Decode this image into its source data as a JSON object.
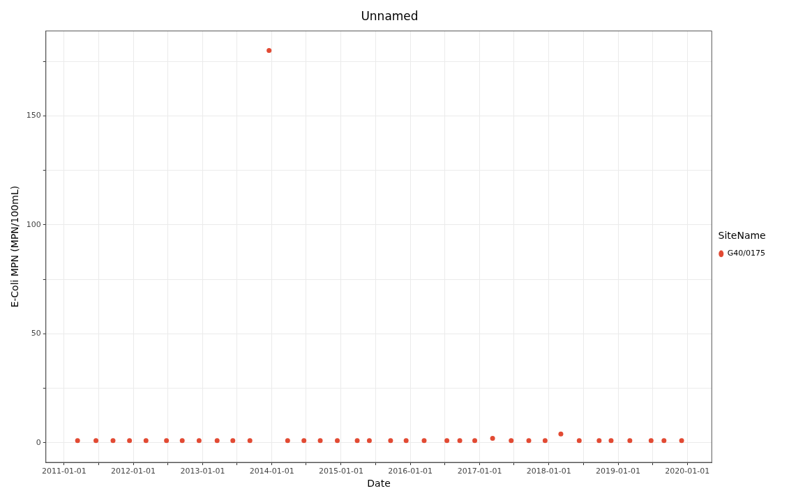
{
  "chart_data": {
    "type": "scatter",
    "title": "Unnamed",
    "xlabel": "Date",
    "ylabel": "E-Coli MPN (MPN/100mL)",
    "legend_title": "SiteName",
    "x": [
      "2011-03-13",
      "2011-06-18",
      "2011-09-16",
      "2011-12-12",
      "2012-03-08",
      "2012-06-24",
      "2012-09-15",
      "2012-12-13",
      "2013-03-18",
      "2013-06-09",
      "2013-09-07",
      "2013-12-17",
      "2014-03-25",
      "2014-06-19",
      "2014-09-13",
      "2014-12-12",
      "2015-03-27",
      "2015-05-30",
      "2015-09-19",
      "2015-12-10",
      "2016-03-14",
      "2016-07-12",
      "2016-09-18",
      "2016-12-06",
      "2017-03-10",
      "2017-06-16",
      "2017-09-17",
      "2017-12-12",
      "2018-03-05",
      "2018-06-10",
      "2018-09-23",
      "2018-11-25",
      "2019-03-04",
      "2019-06-24",
      "2019-08-31",
      "2019-12-02"
    ],
    "series": [
      {
        "name": "G40/0175",
        "color": "#e24a33",
        "values": [
          1,
          1,
          1,
          1,
          1,
          1,
          1,
          1,
          1,
          1,
          1,
          180,
          1,
          1,
          1,
          1,
          1,
          1,
          1,
          1,
          1,
          1,
          1,
          1,
          2,
          1,
          1,
          1,
          4,
          1,
          1,
          1,
          1,
          1,
          1,
          1
        ]
      }
    ],
    "xlim": [
      "2010-09-27",
      "2020-05-09"
    ],
    "xticks": [
      "2011-01-01",
      {
        "value": "2011-07-01",
        "label": null
      },
      "2012-01-01",
      {
        "value": "2012-07-01",
        "label": null
      },
      "2013-01-01",
      {
        "value": "2013-07-01",
        "label": null
      },
      "2014-01-01",
      {
        "value": "2014-07-01",
        "label": null
      },
      "2015-01-01",
      {
        "value": "2015-07-01",
        "label": null
      },
      "2016-01-01",
      {
        "value": "2016-07-01",
        "label": null
      },
      "2017-01-01",
      {
        "value": "2017-07-01",
        "label": null
      },
      "2018-01-01",
      {
        "value": "2018-07-01",
        "label": null
      },
      "2019-01-01",
      {
        "value": "2019-07-01",
        "label": null
      },
      "2020-01-01"
    ],
    "ylim": [
      -9,
      189
    ],
    "yticks": [
      0,
      {
        "value": 25,
        "label": null
      },
      50,
      {
        "value": 75,
        "label": null
      },
      100,
      {
        "value": 125,
        "label": null
      },
      150,
      {
        "value": 175,
        "label": null
      }
    ],
    "grid": true,
    "legend": "right",
    "marker": "circle"
  }
}
